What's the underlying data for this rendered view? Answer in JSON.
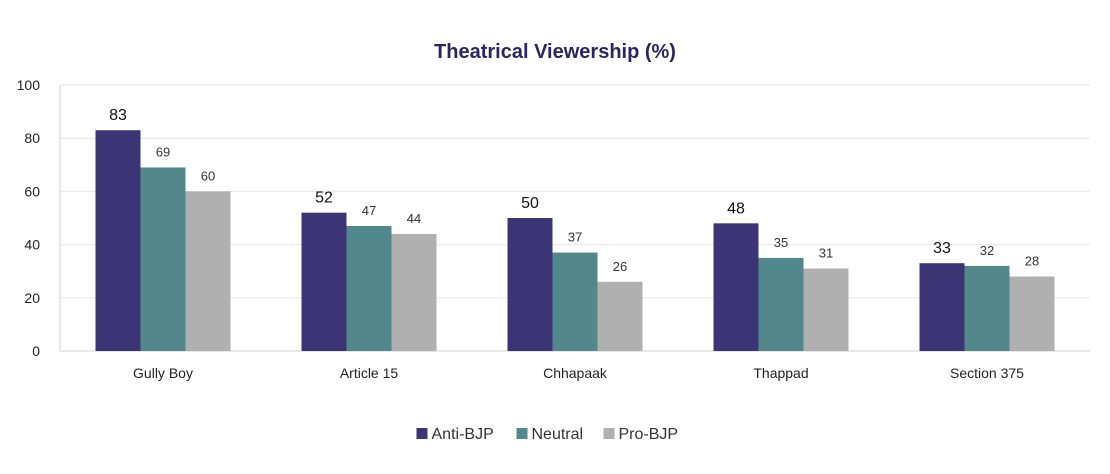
{
  "chart_data": {
    "type": "bar",
    "title": "Theatrical Viewership (%)",
    "xlabel": "",
    "ylabel": "",
    "categories": [
      "Gully Boy",
      "Article 15",
      "Chhapaak",
      "Thappad",
      "Section 375"
    ],
    "series": [
      {
        "name": "Anti-BJP",
        "values": [
          83,
          52,
          50,
          48,
          33
        ],
        "color": "#3b3575"
      },
      {
        "name": "Neutral",
        "values": [
          69,
          47,
          37,
          35,
          32
        ],
        "color": "#52888c"
      },
      {
        "name": "Pro-BJP",
        "values": [
          60,
          44,
          26,
          31,
          28
        ],
        "color": "#b0b0b0"
      }
    ],
    "ylim": [
      0,
      100
    ],
    "yticks": [
      0,
      20,
      40,
      60,
      80,
      100
    ],
    "grid": true,
    "legend_position": "bottom",
    "title_color": "#2b2563"
  }
}
